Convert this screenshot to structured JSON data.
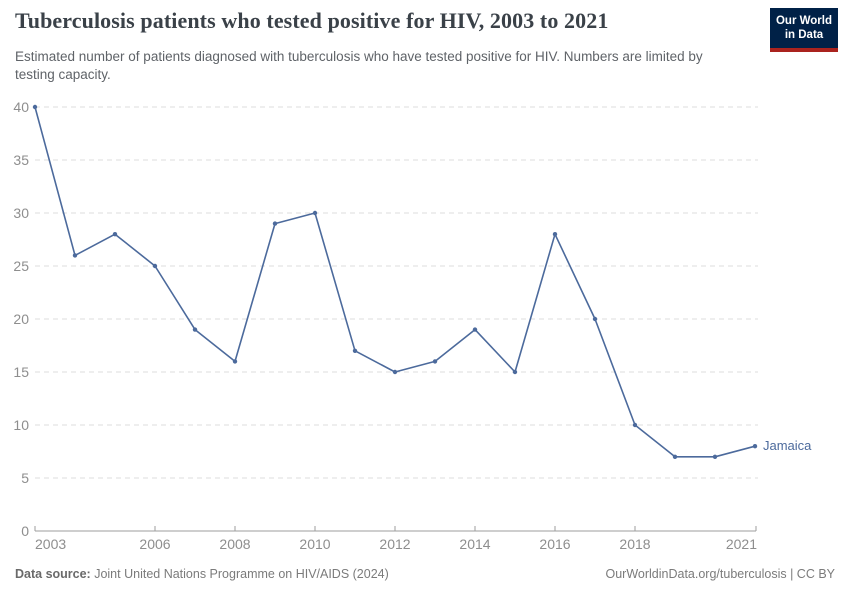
{
  "header": {
    "title": "Tuberculosis patients who tested positive for HIV, 2003 to 2021",
    "subtitle": "Estimated number of patients diagnosed with tuberculosis who have tested positive for HIV. Numbers are limited by testing capacity.",
    "logo": {
      "line1": "Our World",
      "line2": "in Data"
    }
  },
  "chart_data": {
    "type": "line",
    "title": "Tuberculosis patients who tested positive for HIV, 2003 to 2021",
    "x": [
      2003,
      2004,
      2005,
      2006,
      2007,
      2008,
      2009,
      2010,
      2011,
      2012,
      2013,
      2014,
      2015,
      2016,
      2017,
      2018,
      2019,
      2020,
      2021
    ],
    "series": [
      {
        "name": "Jamaica",
        "color": "#4C6A9C",
        "values": [
          40,
          26,
          28,
          25,
          19,
          16,
          29,
          30,
          17,
          15,
          16,
          19,
          15,
          28,
          20,
          10,
          7,
          7,
          8
        ]
      }
    ],
    "xlabel": "",
    "ylabel": "",
    "ylim": [
      0,
      40
    ],
    "yticks": [
      0,
      5,
      10,
      15,
      20,
      25,
      30,
      35,
      40
    ],
    "xticks": [
      2003,
      2006,
      2008,
      2010,
      2012,
      2014,
      2016,
      2018,
      2021
    ],
    "grid": "horizontal-dashed",
    "legend_position": "entity-label-at-line-end"
  },
  "footer": {
    "datasource_label": "Data source:",
    "datasource_value": " Joint United Nations Programme on HIV/AIDS (2024)",
    "attribution": "OurWorldinData.org/tuberculosis | CC BY"
  },
  "colors": {
    "line": "#4C6A9C",
    "logo_bg": "#002147",
    "logo_stripe": "#aa231e",
    "grid": "#dcdcdc",
    "axis": "#9e9e9e",
    "tick_text": "#8e8e8e"
  }
}
